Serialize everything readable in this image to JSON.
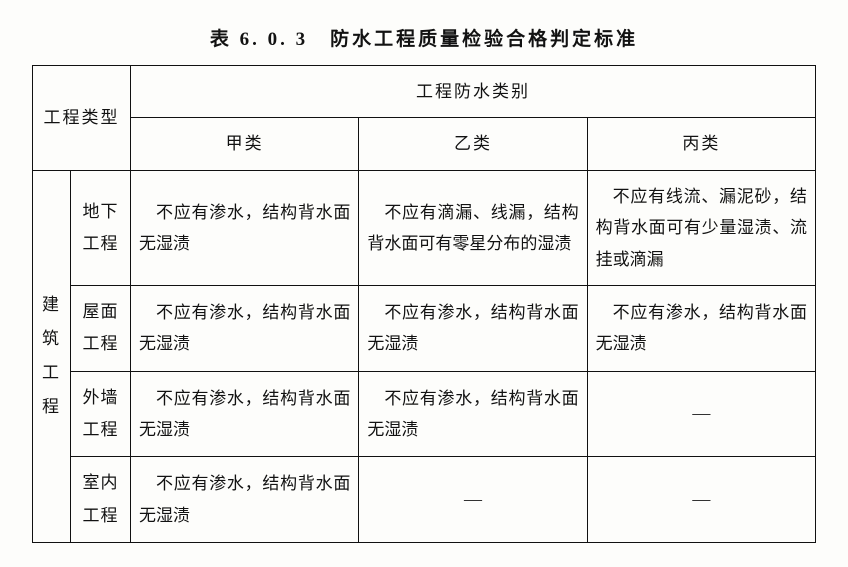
{
  "title": "表 6. 0. 3　防水工程质量检验合格判定标准",
  "header": {
    "project_type": "工程类型",
    "waterproof_category": "工程防水类别",
    "cat_a": "甲类",
    "cat_b": "乙类",
    "cat_c": "丙类"
  },
  "group": {
    "label": "建筑工程"
  },
  "rows": [
    {
      "sub": "地下工程",
      "a": "不应有渗水，结构背水面无湿渍",
      "b": "不应有滴漏、线漏，结构背水面可有零星分布的湿渍",
      "c": "不应有线流、漏泥砂，结构背水面可有少量湿渍、流挂或滴漏"
    },
    {
      "sub": "屋面工程",
      "a": "不应有渗水，结构背水面无湿渍",
      "b": "不应有渗水，结构背水面无湿渍",
      "c": "不应有渗水，结构背水面无湿渍"
    },
    {
      "sub": "外墙工程",
      "a": "不应有渗水，结构背水面无湿渍",
      "b": "不应有渗水，结构背水面无湿渍",
      "c": "—"
    },
    {
      "sub": "室内工程",
      "a": "不应有渗水，结构背水面无湿渍",
      "b": "—",
      "c": "—"
    }
  ],
  "style": {
    "font_size_title": 19,
    "font_size_cell": 17,
    "border_color": "#111111",
    "background_color": "#fdfdfb",
    "text_color": "#121212",
    "line_height": 1.85
  }
}
